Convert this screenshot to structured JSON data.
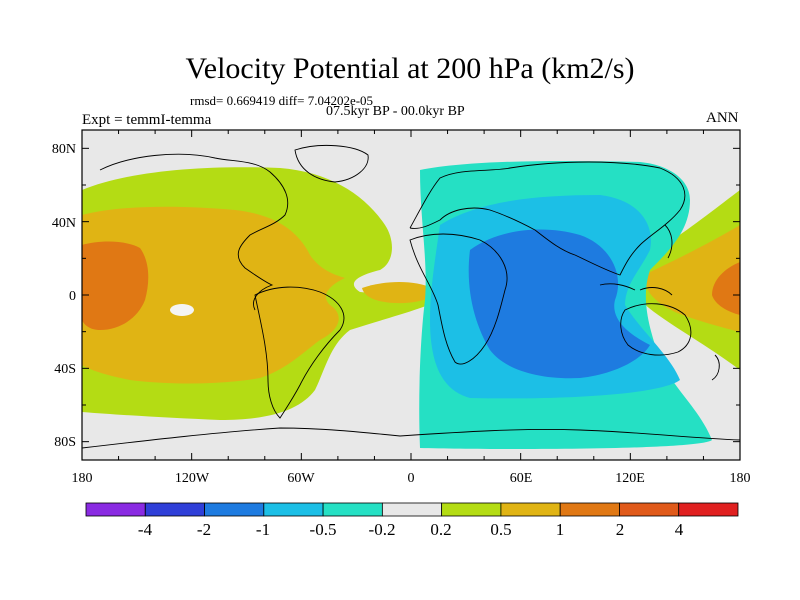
{
  "figure": {
    "title": "Velocity Potential at 200 hPa (km2/s)",
    "stats": "rmsd= 0.669419  diff= 7.04202e-05",
    "period": "07.5kyr BP - 00.0kyr BP",
    "experiment": "Expt = temmI-temma",
    "season": "ANN"
  },
  "map": {
    "projection": "cylindrical-equidistant",
    "lon_range": [
      -180,
      180
    ],
    "lat_range": [
      -90,
      90
    ],
    "x_tick_labels": [
      "180",
      "120W",
      "60W",
      "0",
      "60E",
      "120E",
      "180"
    ],
    "y_tick_labels": [
      "80N",
      "40N",
      "0",
      "40S",
      "80S"
    ],
    "contour_colors": {
      "lt_-4": "#8a2be2",
      "-4_-2": "#2f3fd8",
      "-2_-1": "#1e7be0",
      "-1_-0.5": "#1cbfe6",
      "-0.5_-0.2": "#25e0c4",
      "-0.2_0.2": "#e8e8e8",
      "0.2_0.5": "#b4dc14",
      "0.5_1": "#e0b414",
      "1_2": "#e07814",
      "2_4": "#e05a1a",
      "gt_4": "#e02020"
    }
  },
  "colorbar": {
    "labels": [
      "-4",
      "-2",
      "-1",
      "-0.5",
      "-0.2",
      "0.2",
      "0.5",
      "1",
      "2",
      "4"
    ],
    "colors": [
      "#8a2be2",
      "#2f3fd8",
      "#1e7be0",
      "#1cbfe6",
      "#25e0c4",
      "#e8e8e8",
      "#b4dc14",
      "#e0b414",
      "#e07814",
      "#e05a1a",
      "#e02020"
    ]
  }
}
